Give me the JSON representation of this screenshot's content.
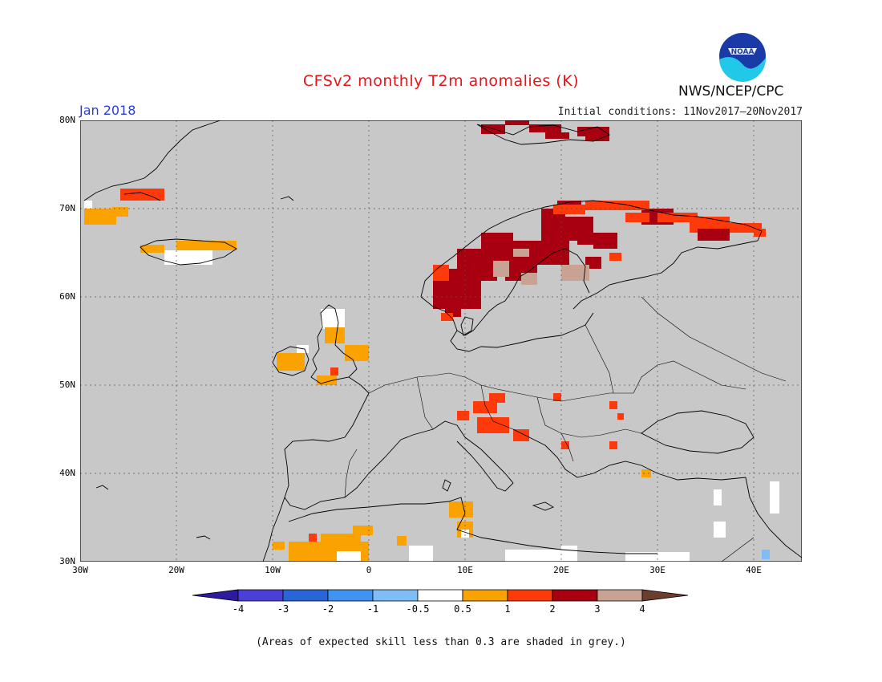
{
  "title": "CFSv2 monthly T2m anomalies (K)",
  "month_label": "Jan 2018",
  "initial_conditions": "Initial conditions: 11Nov2017–20Nov2017",
  "agency": "NWS/NCEP/CPC",
  "logo_text": "NOAA",
  "footnote": "(Areas of expected skill less than 0.3 are shaded in grey.)",
  "map": {
    "region": "Europe",
    "lon_range": [
      -30,
      45
    ],
    "lat_range": [
      30,
      80
    ],
    "lat_labels": [
      "80N",
      "70N",
      "60N",
      "50N",
      "40N",
      "30N"
    ],
    "lon_labels": [
      "30W",
      "20W",
      "10W",
      "0",
      "10E",
      "20E",
      "30E",
      "40E"
    ],
    "background_color": "#c8c8c8",
    "anomaly_regions": [
      {
        "name": "Svalbard",
        "category": "2 to 3"
      },
      {
        "name": "Scandinavia",
        "category": "2 to 3"
      },
      {
        "name": "Northwest Russia",
        "category": "1 to 2"
      },
      {
        "name": "Southeast Greenland",
        "category": "1 to 2"
      },
      {
        "name": "Iceland",
        "category": "0.5 to 1"
      },
      {
        "name": "Ireland",
        "category": "0.5 to 1"
      },
      {
        "name": "England",
        "category": "0.5 to 1"
      },
      {
        "name": "Alps / Northern Italy",
        "category": "1 to 2"
      },
      {
        "name": "Tunisia",
        "category": "0.5 to 1"
      },
      {
        "name": "Morocco / Algeria",
        "category": "0.5 to 1"
      }
    ]
  },
  "colorbar": {
    "labels": [
      "-4",
      "-3",
      "-2",
      "-1",
      "-0.5",
      "0.5",
      "1",
      "2",
      "3",
      "4"
    ],
    "colors": [
      "#2e1a9e",
      "#4a3fd6",
      "#2866d8",
      "#3f94f0",
      "#7ebdf5",
      "#ffffff",
      "#f9a200",
      "#ff3a0a",
      "#a80010",
      "#c8a394",
      "#6b3d2e"
    ]
  }
}
